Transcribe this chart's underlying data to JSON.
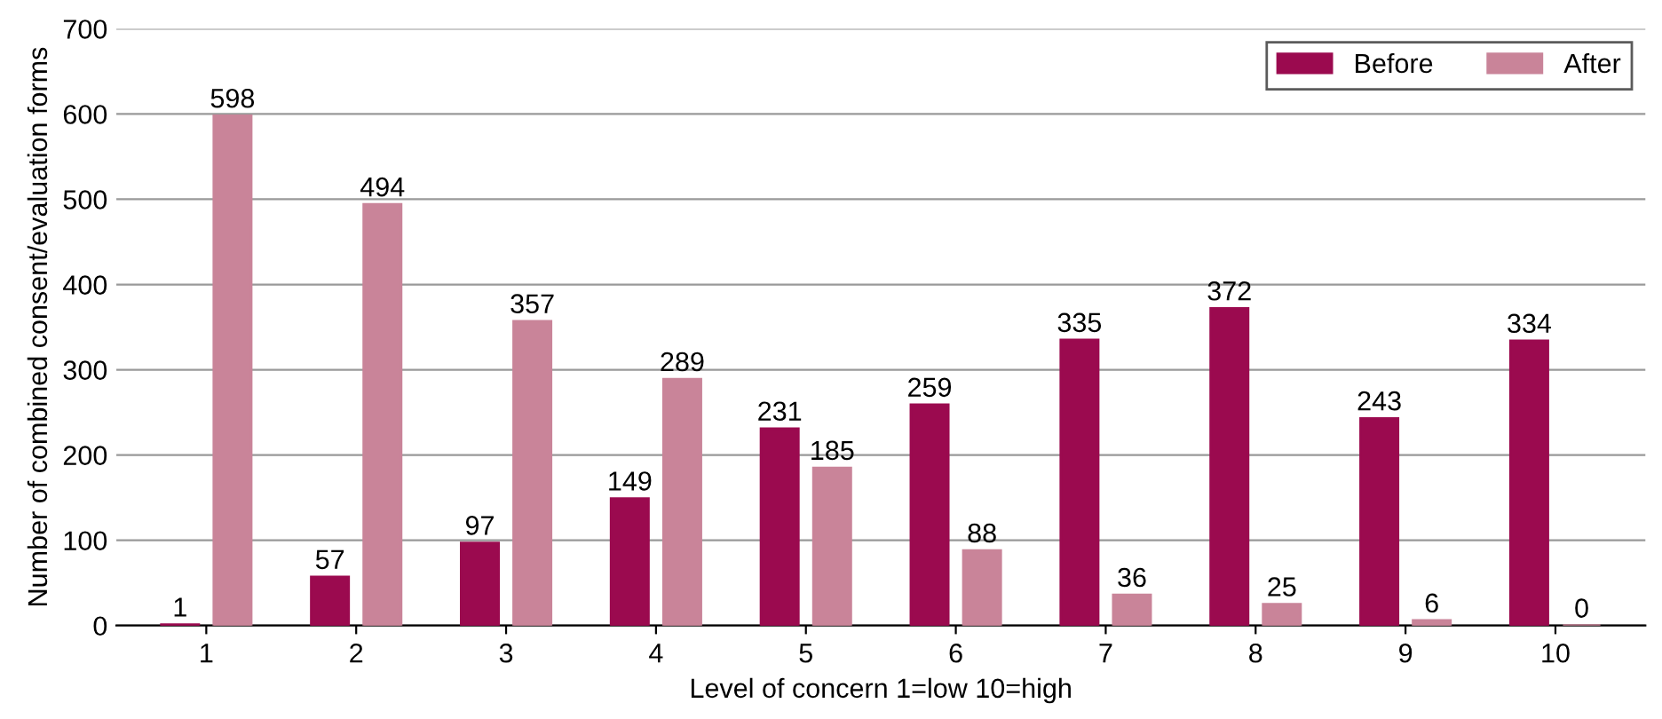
{
  "chart_data": {
    "type": "bar",
    "xlabel": "Level of concern 1=low 10=high",
    "ylabel": "Number of combined consent/evaluation forms",
    "categories": [
      "1",
      "2",
      "3",
      "4",
      "5",
      "6",
      "7",
      "8",
      "9",
      "10"
    ],
    "series": [
      {
        "name": "Before",
        "color": "#9b0a4f",
        "values": [
          1,
          57,
          97,
          149,
          231,
          259,
          335,
          372,
          243,
          334
        ]
      },
      {
        "name": "After",
        "color": "#c98499",
        "values": [
          598,
          494,
          357,
          289,
          185,
          88,
          36,
          25,
          6,
          0
        ]
      }
    ],
    "ylim": [
      0,
      700
    ],
    "yticks": [
      0,
      100,
      200,
      300,
      400,
      500,
      600,
      700
    ],
    "grid": "y",
    "legend": "top right",
    "data_labels": true
  }
}
